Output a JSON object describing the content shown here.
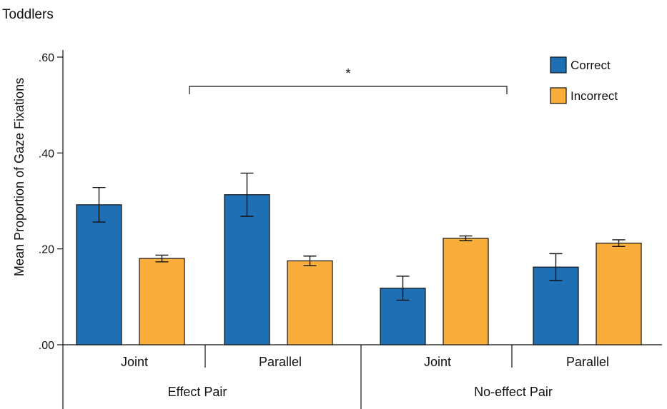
{
  "chart_data": {
    "type": "bar",
    "title": "Toddlers",
    "ylabel": "Mean Proportion of Gaze Fixations",
    "ylim": [
      0,
      0.6
    ],
    "yticks": [
      {
        "value": 0.0,
        "label": ".00"
      },
      {
        "value": 0.2,
        "label": ".20"
      },
      {
        "value": 0.4,
        "label": ".40"
      },
      {
        "value": 0.6,
        "label": ".60"
      }
    ],
    "categories": [
      "Joint",
      "Parallel",
      "Joint",
      "Parallel"
    ],
    "groups": [
      {
        "label": "Effect Pair",
        "categories": [
          0,
          1
        ]
      },
      {
        "label": "No-effect Pair",
        "categories": [
          2,
          3
        ]
      }
    ],
    "series": [
      {
        "name": "Correct",
        "color": "#1f6fb5",
        "values": [
          0.292,
          0.313,
          0.118,
          0.162
        ],
        "errors": [
          0.036,
          0.045,
          0.025,
          0.028
        ]
      },
      {
        "name": "Incorrect",
        "color": "#f9ae3c",
        "values": [
          0.18,
          0.175,
          0.222,
          0.212
        ],
        "errors": [
          0.007,
          0.01,
          0.005,
          0.007
        ]
      }
    ],
    "annotations": [
      {
        "type": "significance-bracket",
        "text": "*",
        "from_group": 0,
        "to_group": 1
      }
    ],
    "legend": {
      "position": "top-right"
    },
    "grid": false
  }
}
